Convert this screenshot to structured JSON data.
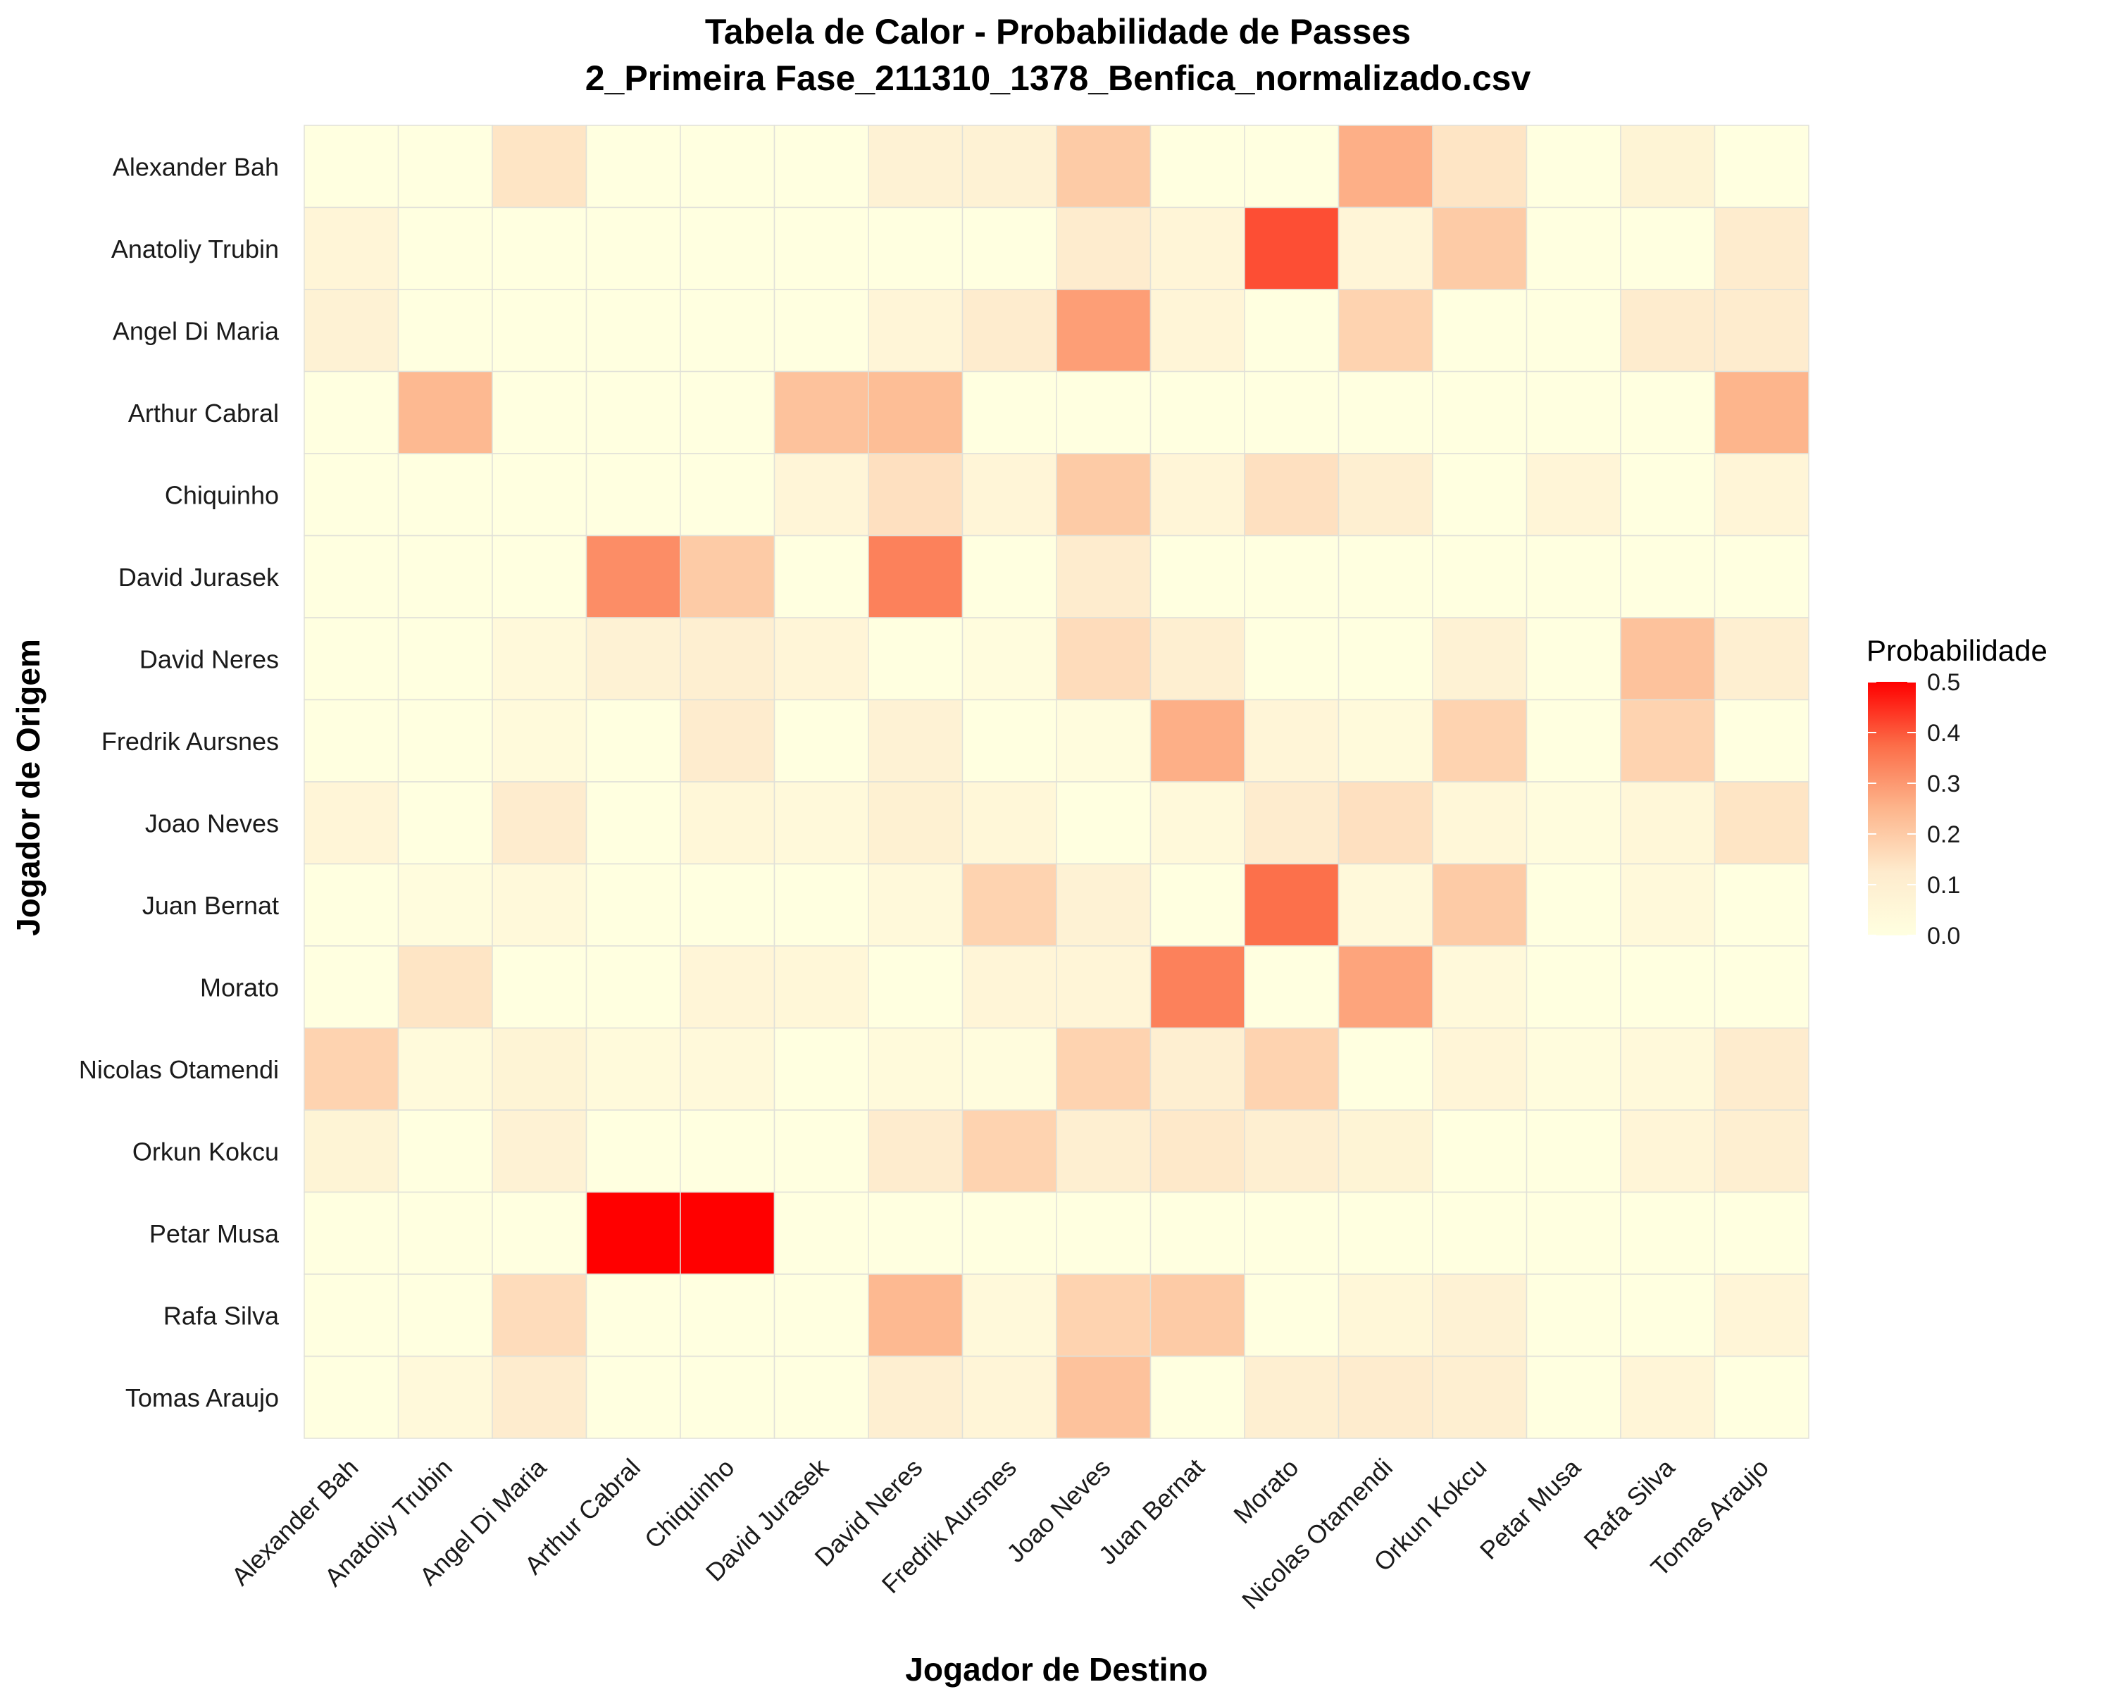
{
  "chart_data": {
    "type": "heatmap",
    "title": "Tabela de Calor - Probabilidade de Passes",
    "subtitle": "2_Primeira Fase_211310_1378_Benfica_normalizado.csv",
    "xlabel": "Jogador de Destino",
    "ylabel": "Jogador de Origem",
    "legend_title": "Probabilidade",
    "legend_ticks": [
      "0.5",
      "0.4",
      "0.3",
      "0.2",
      "0.1",
      "0.0"
    ],
    "legend_position": "right",
    "color_low": "#ffffe0",
    "color_high": "#ff0000",
    "value_range": [
      0,
      0.5
    ],
    "x_categories": [
      "Alexander Bah",
      "Anatoliy Trubin",
      "Angel Di Maria",
      "Arthur Cabral",
      "Chiquinho",
      "David Jurasek",
      "David Neres",
      "Fredrik Aursnes",
      "Joao Neves",
      "Juan Bernat",
      "Morato",
      "Nicolas Otamendi",
      "Orkun Kokcu",
      "Petar Musa",
      "Rafa Silva",
      "Tomas Araujo"
    ],
    "y_categories": [
      "Alexander Bah",
      "Anatoliy Trubin",
      "Angel Di Maria",
      "Arthur Cabral",
      "Chiquinho",
      "David Jurasek",
      "David Neres",
      "Fredrik Aursnes",
      "Joao Neves",
      "Juan Bernat",
      "Morato",
      "Nicolas Otamendi",
      "Orkun Kokcu",
      "Petar Musa",
      "Rafa Silva",
      "Tomas Araujo"
    ],
    "y_tick_labels": [
      "Alexander Bah",
      "Anatoliy Trubin",
      "Angel Di Maria",
      "Arthur Cabral",
      "Chiquinho",
      "David Jurasek",
      "David Neres",
      "Fredrik Aursnes",
      "Joao Neves",
      "Juan Bernat",
      "Morato",
      "Nicolas Otamendi",
      "Orkun Kokcu",
      "Petar Musa",
      "Rafa Silva",
      "Tomas Araujo "
    ],
    "values": [
      [
        0.0,
        0.0,
        0.14,
        0.0,
        0.0,
        0.0,
        0.08,
        0.08,
        0.2,
        0.0,
        0.0,
        0.26,
        0.14,
        0.0,
        0.07,
        0.0
      ],
      [
        0.06,
        0.0,
        0.0,
        0.0,
        0.0,
        0.0,
        0.0,
        0.0,
        0.12,
        0.06,
        0.41,
        0.06,
        0.2,
        0.0,
        0.0,
        0.12
      ],
      [
        0.08,
        0.0,
        0.0,
        0.0,
        0.0,
        0.0,
        0.06,
        0.12,
        0.29,
        0.06,
        0.0,
        0.18,
        0.0,
        0.0,
        0.12,
        0.12
      ],
      [
        0.0,
        0.24,
        0.0,
        0.0,
        0.0,
        0.22,
        0.23,
        0.0,
        0.0,
        0.0,
        0.0,
        0.0,
        0.0,
        0.0,
        0.0,
        0.25
      ],
      [
        0.0,
        0.0,
        0.0,
        0.0,
        0.0,
        0.06,
        0.15,
        0.06,
        0.2,
        0.06,
        0.15,
        0.1,
        0.0,
        0.06,
        0.0,
        0.06
      ],
      [
        0.0,
        0.0,
        0.0,
        0.32,
        0.2,
        0.0,
        0.34,
        0.0,
        0.12,
        0.0,
        0.0,
        0.0,
        0.0,
        0.0,
        0.0,
        0.0
      ],
      [
        0.0,
        0.0,
        0.04,
        0.08,
        0.1,
        0.06,
        0.0,
        0.02,
        0.16,
        0.1,
        0.0,
        0.0,
        0.08,
        0.0,
        0.22,
        0.1
      ],
      [
        0.0,
        0.0,
        0.03,
        0.0,
        0.12,
        0.0,
        0.08,
        0.0,
        0.02,
        0.26,
        0.06,
        0.03,
        0.18,
        0.0,
        0.18,
        0.0
      ],
      [
        0.06,
        0.0,
        0.12,
        0.0,
        0.05,
        0.04,
        0.09,
        0.05,
        0.0,
        0.04,
        0.12,
        0.15,
        0.05,
        0.02,
        0.05,
        0.14
      ],
      [
        0.0,
        0.02,
        0.04,
        0.0,
        0.0,
        0.0,
        0.04,
        0.18,
        0.08,
        0.0,
        0.37,
        0.04,
        0.2,
        0.0,
        0.04,
        0.0
      ],
      [
        0.0,
        0.14,
        0.0,
        0.0,
        0.06,
        0.05,
        0.0,
        0.06,
        0.06,
        0.34,
        0.0,
        0.28,
        0.04,
        0.0,
        0.0,
        0.0
      ],
      [
        0.18,
        0.03,
        0.07,
        0.03,
        0.04,
        0.0,
        0.03,
        0.02,
        0.18,
        0.1,
        0.18,
        0.0,
        0.06,
        0.02,
        0.04,
        0.12
      ],
      [
        0.07,
        0.0,
        0.08,
        0.0,
        0.0,
        0.0,
        0.12,
        0.18,
        0.1,
        0.13,
        0.1,
        0.07,
        0.0,
        0.0,
        0.06,
        0.1
      ],
      [
        0.0,
        0.0,
        0.0,
        0.5,
        0.5,
        0.0,
        0.0,
        0.0,
        0.0,
        0.0,
        0.0,
        0.0,
        0.0,
        0.0,
        0.0,
        0.0
      ],
      [
        0.0,
        0.0,
        0.16,
        0.0,
        0.0,
        0.0,
        0.24,
        0.04,
        0.18,
        0.2,
        0.0,
        0.05,
        0.08,
        0.0,
        0.0,
        0.06
      ],
      [
        0.0,
        0.04,
        0.12,
        0.0,
        0.0,
        0.0,
        0.1,
        0.06,
        0.22,
        0.0,
        0.1,
        0.12,
        0.1,
        0.0,
        0.06,
        0.0
      ]
    ]
  }
}
